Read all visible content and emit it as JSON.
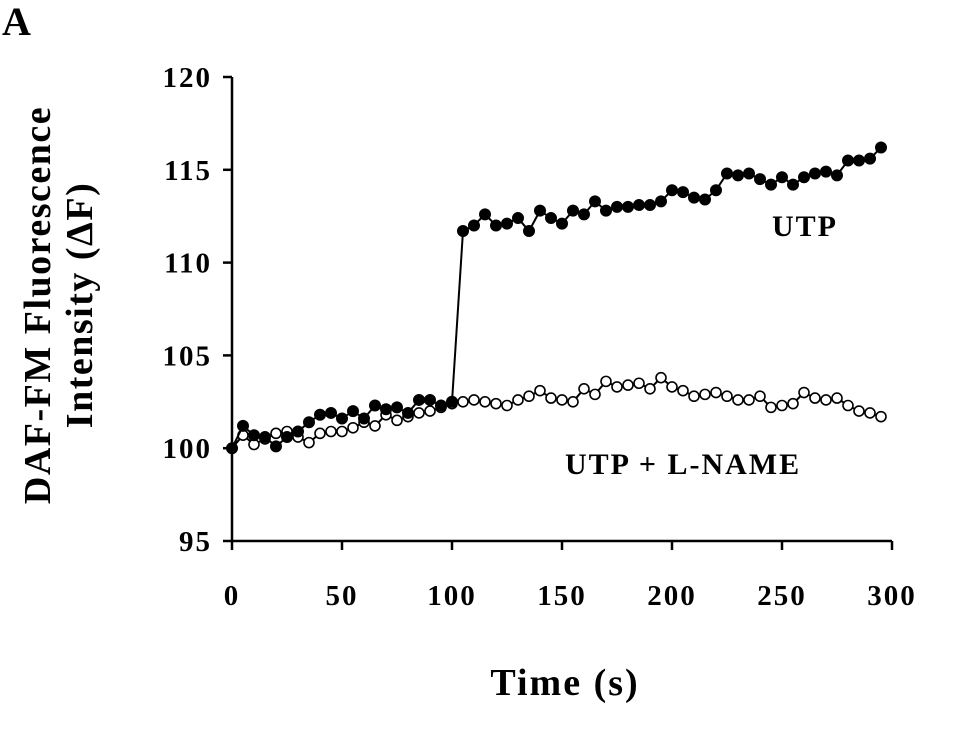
{
  "panel_label": "A",
  "chart_data": {
    "type": "line",
    "title": "",
    "xlabel": "Time (s)",
    "ylabel_lines": [
      "DAF-FM Fluorescence",
      "Intensity (ΔF)"
    ],
    "xlim": [
      0,
      300
    ],
    "ylim": [
      95,
      120
    ],
    "xticks": [
      0,
      50,
      100,
      150,
      200,
      250,
      300
    ],
    "yticks": [
      95,
      100,
      105,
      110,
      115,
      120
    ],
    "grid": false,
    "legend": "none",
    "x": [
      0,
      5,
      10,
      15,
      20,
      25,
      30,
      35,
      40,
      45,
      50,
      55,
      60,
      65,
      70,
      75,
      80,
      85,
      90,
      95,
      100,
      105,
      110,
      115,
      120,
      125,
      130,
      135,
      140,
      145,
      150,
      155,
      160,
      165,
      170,
      175,
      180,
      185,
      190,
      195,
      200,
      205,
      210,
      215,
      220,
      225,
      230,
      235,
      240,
      245,
      250,
      255,
      260,
      265,
      270,
      275,
      280,
      285,
      290,
      295
    ],
    "series": [
      {
        "name": "UTP",
        "marker": "filled-circle",
        "color": "#000000",
        "values": [
          100.0,
          101.2,
          100.7,
          100.6,
          100.1,
          100.6,
          100.9,
          101.4,
          101.8,
          101.9,
          101.6,
          102.0,
          101.6,
          102.3,
          102.1,
          102.2,
          101.9,
          102.6,
          102.6,
          102.3,
          102.5,
          111.7,
          112.0,
          112.6,
          112.0,
          112.1,
          112.4,
          111.7,
          112.8,
          112.4,
          112.1,
          112.8,
          112.6,
          113.3,
          112.8,
          113.0,
          113.0,
          113.1,
          113.1,
          113.3,
          113.9,
          113.8,
          113.5,
          113.4,
          113.9,
          114.8,
          114.7,
          114.8,
          114.5,
          114.2,
          114.6,
          114.2,
          114.6,
          114.8,
          114.9,
          114.7,
          115.5,
          115.5,
          115.6,
          116.2
        ]
      },
      {
        "name": "UTP + L-NAME",
        "marker": "open-circle",
        "color": "#000000",
        "values": [
          100.0,
          100.7,
          100.2,
          100.5,
          100.8,
          100.9,
          100.6,
          100.3,
          100.8,
          100.9,
          100.9,
          101.1,
          101.4,
          101.2,
          101.8,
          101.5,
          101.7,
          101.9,
          102.0,
          102.2,
          102.4,
          102.5,
          102.6,
          102.5,
          102.4,
          102.3,
          102.6,
          102.8,
          103.1,
          102.7,
          102.6,
          102.5,
          103.2,
          102.9,
          103.6,
          103.3,
          103.4,
          103.5,
          103.2,
          103.8,
          103.3,
          103.1,
          102.8,
          102.9,
          103.0,
          102.8,
          102.6,
          102.6,
          102.8,
          102.2,
          102.3,
          102.4,
          103.0,
          102.7,
          102.6,
          102.7,
          102.3,
          102.0,
          101.9,
          101.7
        ]
      }
    ],
    "annotations": [
      {
        "text": "UTP",
        "series": "UTP"
      },
      {
        "text": "UTP + L-NAME",
        "series": "UTP + L-NAME"
      }
    ]
  }
}
